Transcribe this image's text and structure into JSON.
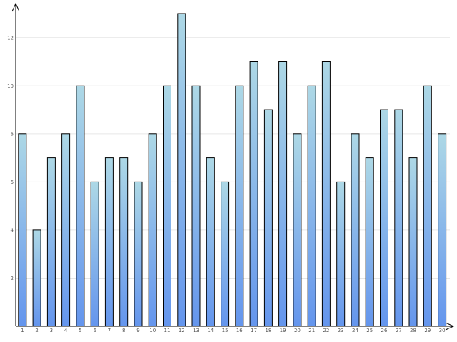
{
  "chart_data": {
    "type": "bar",
    "title": "",
    "xlabel": "",
    "ylabel": "",
    "categories": [
      "1",
      "2",
      "3",
      "4",
      "5",
      "6",
      "7",
      "8",
      "9",
      "10",
      "11",
      "12",
      "13",
      "14",
      "15",
      "16",
      "17",
      "18",
      "19",
      "20",
      "21",
      "22",
      "23",
      "24",
      "25",
      "26",
      "27",
      "28",
      "29",
      "30"
    ],
    "values": [
      8,
      4,
      7,
      8,
      10,
      6,
      7,
      7,
      6,
      8,
      10,
      13,
      10,
      7,
      6,
      10,
      11,
      9,
      11,
      8,
      10,
      11,
      6,
      8,
      7,
      9,
      9,
      7,
      10,
      8
    ],
    "ylim": [
      0,
      13
    ],
    "y_ticks": [
      "2",
      "4",
      "6",
      "8",
      "10",
      "12"
    ],
    "grid": true,
    "legend": "none",
    "colors": {
      "bar_top": "#add8e6",
      "bar_bottom": "#6495ed",
      "bar_stroke": "#000000",
      "grid": "#e6e6e6",
      "axis": "#000000",
      "tick_text": "#555555"
    }
  }
}
